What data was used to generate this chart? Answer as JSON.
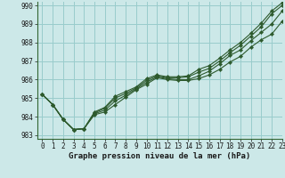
{
  "title": "Graphe pression niveau de la mer (hPa)",
  "background_color": "#cce8e8",
  "grid_color": "#99cccc",
  "line_color": "#2d5a2d",
  "xlim": [
    -0.5,
    23
  ],
  "ylim": [
    982.8,
    990.2
  ],
  "yticks": [
    983,
    984,
    985,
    986,
    987,
    988,
    989,
    990
  ],
  "xticks": [
    0,
    1,
    2,
    3,
    4,
    5,
    6,
    7,
    8,
    9,
    10,
    11,
    12,
    13,
    14,
    15,
    16,
    17,
    18,
    19,
    20,
    21,
    22,
    23
  ],
  "series": [
    [
      985.2,
      984.65,
      983.85,
      983.3,
      983.35,
      984.1,
      984.25,
      984.65,
      985.05,
      985.45,
      985.75,
      986.1,
      986.0,
      985.95,
      985.95,
      986.05,
      986.25,
      986.55,
      986.95,
      987.25,
      987.75,
      988.15,
      988.45,
      989.15
    ],
    [
      985.2,
      984.65,
      983.85,
      983.3,
      983.35,
      984.15,
      984.35,
      984.85,
      985.15,
      985.5,
      985.85,
      986.15,
      986.05,
      986.0,
      986.0,
      986.2,
      986.45,
      986.85,
      987.3,
      987.6,
      988.1,
      988.55,
      989.0,
      989.7
    ],
    [
      985.2,
      984.65,
      983.85,
      983.3,
      983.35,
      984.2,
      984.45,
      985.0,
      985.25,
      985.55,
      985.95,
      986.2,
      986.1,
      986.1,
      986.15,
      986.4,
      986.6,
      987.0,
      987.45,
      987.85,
      988.35,
      988.85,
      989.55,
      990.0
    ],
    [
      985.2,
      984.65,
      983.85,
      983.3,
      983.35,
      984.25,
      984.5,
      985.1,
      985.35,
      985.6,
      986.05,
      986.25,
      986.15,
      986.15,
      986.2,
      986.55,
      986.75,
      987.15,
      987.6,
      988.0,
      988.5,
      989.05,
      989.7,
      990.15
    ]
  ],
  "title_fontsize": 6.5,
  "tick_fontsize": 5.5
}
